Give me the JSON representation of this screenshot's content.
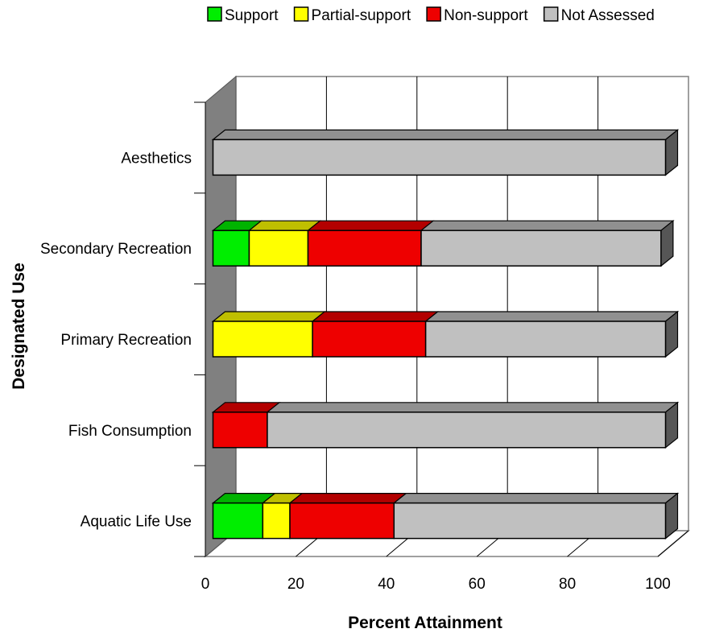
{
  "chart_data": {
    "type": "bar",
    "orientation": "horizontal",
    "stacked": true,
    "three_d": true,
    "xlabel": "Percent Attainment",
    "ylabel": "Designated Use",
    "xlim": [
      0,
      100
    ],
    "x_ticks": [
      "0",
      "20",
      "40",
      "60",
      "80",
      "100"
    ],
    "grid": true,
    "legend_position": "top",
    "categories": [
      "Aesthetics",
      "Secondary Recreation",
      "Primary Recreation",
      "Fish Consumption",
      "Aquatic Life Use"
    ],
    "series": [
      {
        "name": "Support",
        "color": "#00ee00",
        "values": [
          0,
          8,
          0,
          0,
          11
        ]
      },
      {
        "name": "Partial-support",
        "color": "#ffff00",
        "values": [
          0,
          13,
          22,
          0,
          6
        ]
      },
      {
        "name": "Non-support",
        "color": "#ee0000",
        "values": [
          0,
          25,
          25,
          12,
          23
        ]
      },
      {
        "name": "Not Assessed",
        "color": "#c0c0c0",
        "values": [
          100,
          53,
          53,
          88,
          60
        ]
      }
    ]
  }
}
